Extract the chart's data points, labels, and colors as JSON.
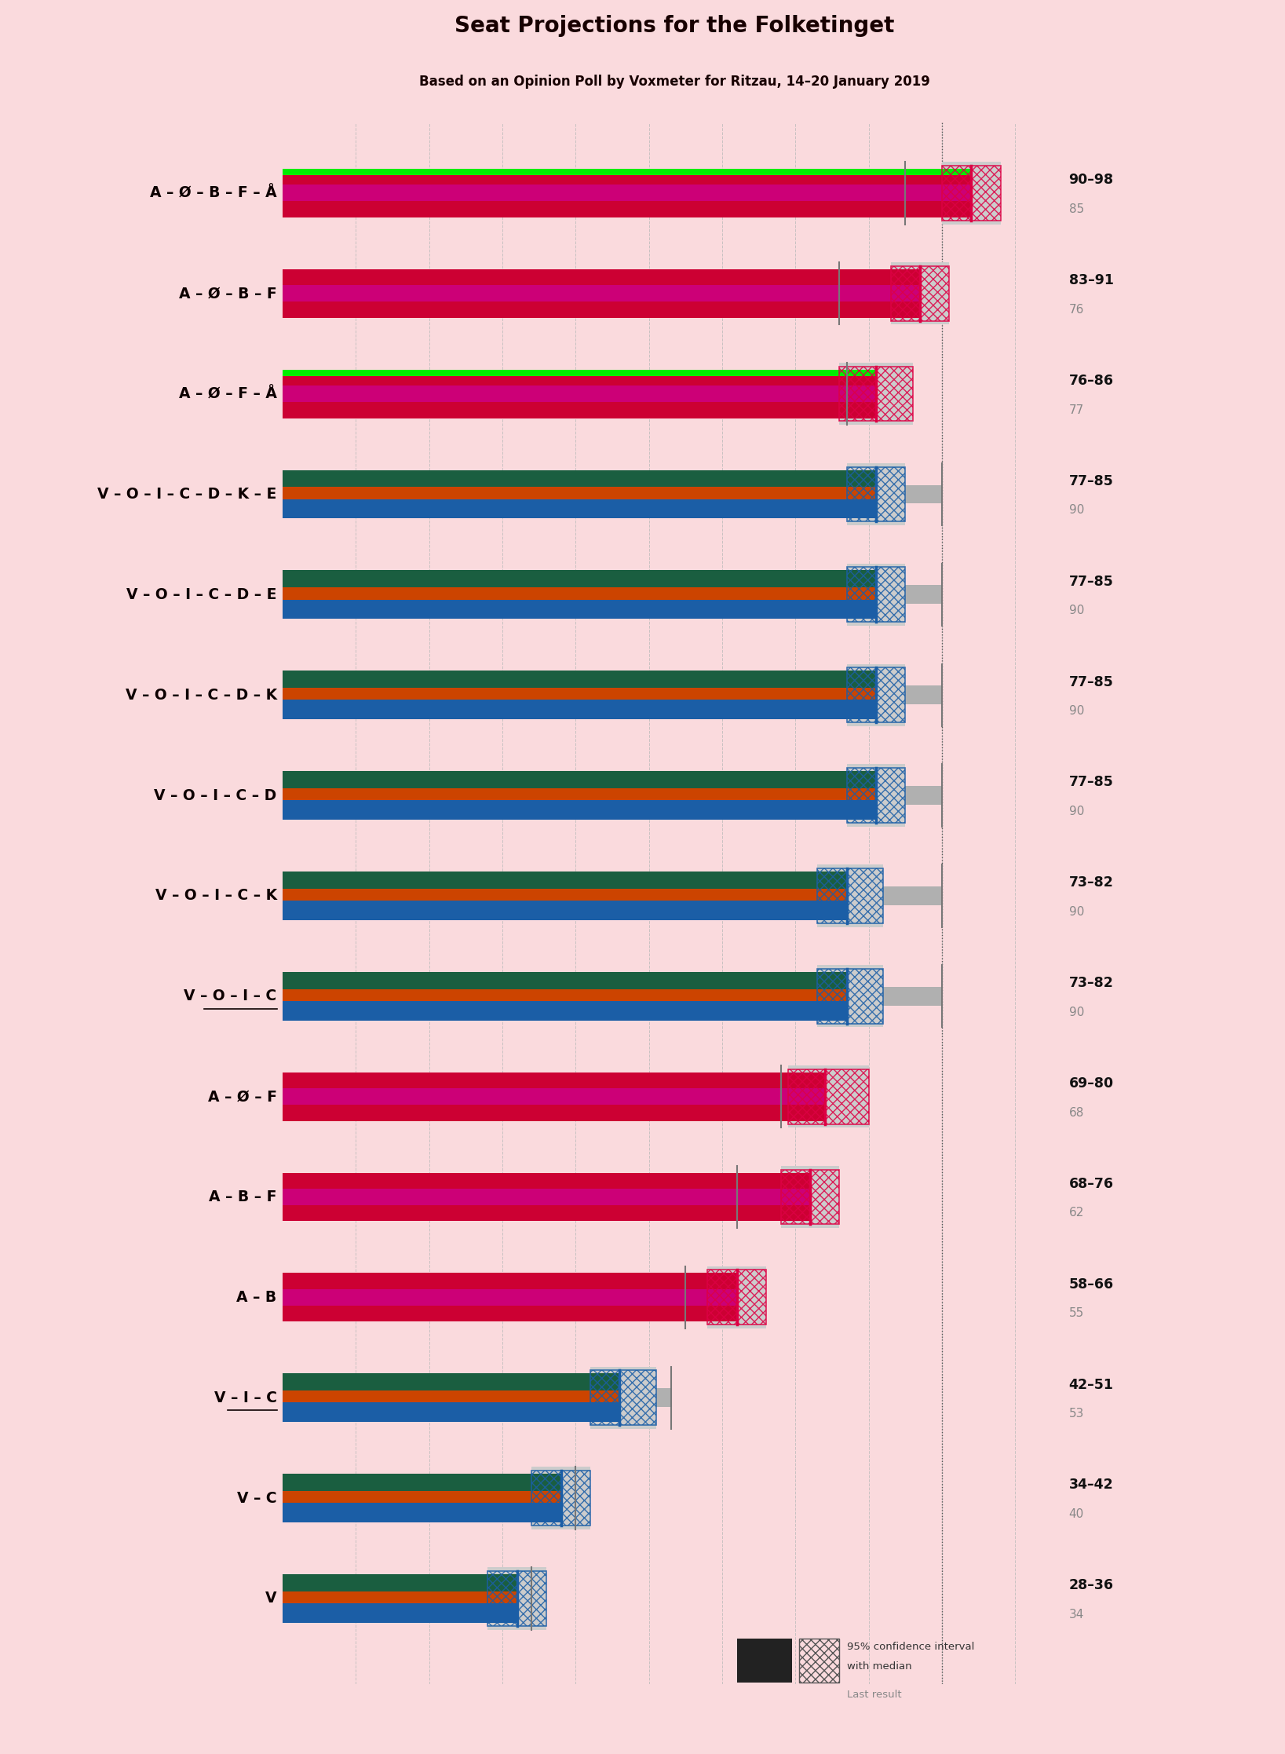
{
  "title": "Seat Projections for the Folketinget",
  "subtitle": "Based on an Opinion Poll by Voxmeter for Ritzau, 14–20 January 2019",
  "background_color": "#FADADD",
  "coalitions": [
    {
      "label": "A – Ø – B – F – Å",
      "low": 90,
      "high": 98,
      "median": 94,
      "last": 85,
      "type": "left_green",
      "underline": false
    },
    {
      "label": "A – Ø – B – F",
      "low": 83,
      "high": 91,
      "median": 87,
      "last": 76,
      "type": "left",
      "underline": false
    },
    {
      "label": "A – Ø – F – Å",
      "low": 76,
      "high": 86,
      "median": 81,
      "last": 77,
      "type": "left_green",
      "underline": false
    },
    {
      "label": "V – O – I – C – D – K – E",
      "low": 77,
      "high": 85,
      "median": 81,
      "last": 90,
      "type": "right",
      "underline": false
    },
    {
      "label": "V – O – I – C – D – E",
      "low": 77,
      "high": 85,
      "median": 81,
      "last": 90,
      "type": "right",
      "underline": false
    },
    {
      "label": "V – O – I – C – D – K",
      "low": 77,
      "high": 85,
      "median": 81,
      "last": 90,
      "type": "right",
      "underline": false
    },
    {
      "label": "V – O – I – C – D",
      "low": 77,
      "high": 85,
      "median": 81,
      "last": 90,
      "type": "right",
      "underline": false
    },
    {
      "label": "V – O – I – C – K",
      "low": 73,
      "high": 82,
      "median": 77,
      "last": 90,
      "type": "right",
      "underline": false
    },
    {
      "label": "V – O – I – C",
      "low": 73,
      "high": 82,
      "median": 77,
      "last": 90,
      "type": "right",
      "underline": true
    },
    {
      "label": "A – Ø – F",
      "low": 69,
      "high": 80,
      "median": 74,
      "last": 68,
      "type": "left",
      "underline": false
    },
    {
      "label": "A – B – F",
      "low": 68,
      "high": 76,
      "median": 72,
      "last": 62,
      "type": "left",
      "underline": false
    },
    {
      "label": "A – B",
      "low": 58,
      "high": 66,
      "median": 62,
      "last": 55,
      "type": "left",
      "underline": false
    },
    {
      "label": "V – I – C",
      "low": 42,
      "high": 51,
      "median": 46,
      "last": 53,
      "type": "right",
      "underline": true
    },
    {
      "label": "V – C",
      "low": 34,
      "high": 42,
      "median": 38,
      "last": 40,
      "type": "right",
      "underline": false
    },
    {
      "label": "V",
      "low": 28,
      "high": 36,
      "median": 32,
      "last": 34,
      "type": "right",
      "underline": false
    }
  ],
  "range_labels": [
    "90–98",
    "83–91",
    "76–86",
    "77–85",
    "77–85",
    "77–85",
    "77–85",
    "73–82",
    "73–82",
    "69–80",
    "68–76",
    "58–66",
    "42–51",
    "34–42",
    "28–36"
  ],
  "last_labels": [
    "85",
    "76",
    "77",
    "90",
    "90",
    "90",
    "90",
    "90",
    "90",
    "68",
    "62",
    "55",
    "53",
    "40",
    "34"
  ],
  "xmax": 107,
  "majority_line": 90,
  "grid_lines": [
    10,
    20,
    30,
    40,
    50,
    60,
    70,
    80,
    90,
    100
  ],
  "left_stripe_colors": [
    "#CC0033",
    "#CC0077",
    "#CC0033"
  ],
  "right_stripe_colors": [
    "#1B5EA6",
    "#CC4400",
    "#1A5E40"
  ],
  "green_color": "#00EE00",
  "ci_bg_color": "#cccccc",
  "last_bar_color": "#b0b0b0",
  "last_tick_color": "#777777",
  "hatch_color_left": "#DD0044",
  "hatch_color_right": "#1B5EA6",
  "grid_color": "#bbbbbb",
  "majority_line_color": "#555555",
  "label_color": "#0d0000",
  "range_label_color": "#111111",
  "last_label_color": "#888888",
  "title_color": "#180000",
  "legend_box1_color": "#222222",
  "legend_box2_ec": "#555555",
  "legend_text_color": "#333333"
}
